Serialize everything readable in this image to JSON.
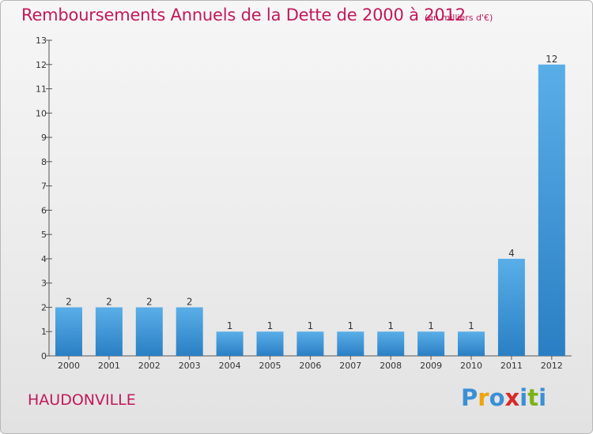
{
  "header": {
    "title": "Remboursements Annuels de la Dette de 2000 à 2012",
    "unit": "(en milliers d'€)"
  },
  "footer": {
    "commune": "HAUDONVILLE",
    "brand_letters": [
      {
        "char": "P",
        "color": "#3a8fd6"
      },
      {
        "char": "r",
        "color": "#f0a30a"
      },
      {
        "char": "o",
        "color": "#3a8fd6"
      },
      {
        "char": "x",
        "color": "#d62a2a"
      },
      {
        "char": "i",
        "color": "#3a8fd6"
      },
      {
        "char": "t",
        "color": "#7ab317"
      },
      {
        "char": "i",
        "color": "#3a8fd6"
      }
    ]
  },
  "chart_data": {
    "type": "bar",
    "categories": [
      "2000",
      "2001",
      "2002",
      "2003",
      "2004",
      "2005",
      "2006",
      "2007",
      "2008",
      "2009",
      "2010",
      "2011",
      "2012"
    ],
    "values": [
      2,
      2,
      2,
      2,
      1,
      1,
      1,
      1,
      1,
      1,
      1,
      4,
      12
    ],
    "value_labels": [
      "2",
      "2",
      "2",
      "2",
      "1",
      "1",
      "1",
      "1",
      "1",
      "1",
      "1",
      "4",
      "12"
    ],
    "y_ticks": [
      0,
      1,
      2,
      3,
      4,
      5,
      6,
      7,
      8,
      9,
      10,
      11,
      12,
      13
    ],
    "ylim": [
      0,
      13
    ],
    "grid": false,
    "bar_color_top": "#5aaee8",
    "bar_color_bottom": "#2a7fc4"
  }
}
